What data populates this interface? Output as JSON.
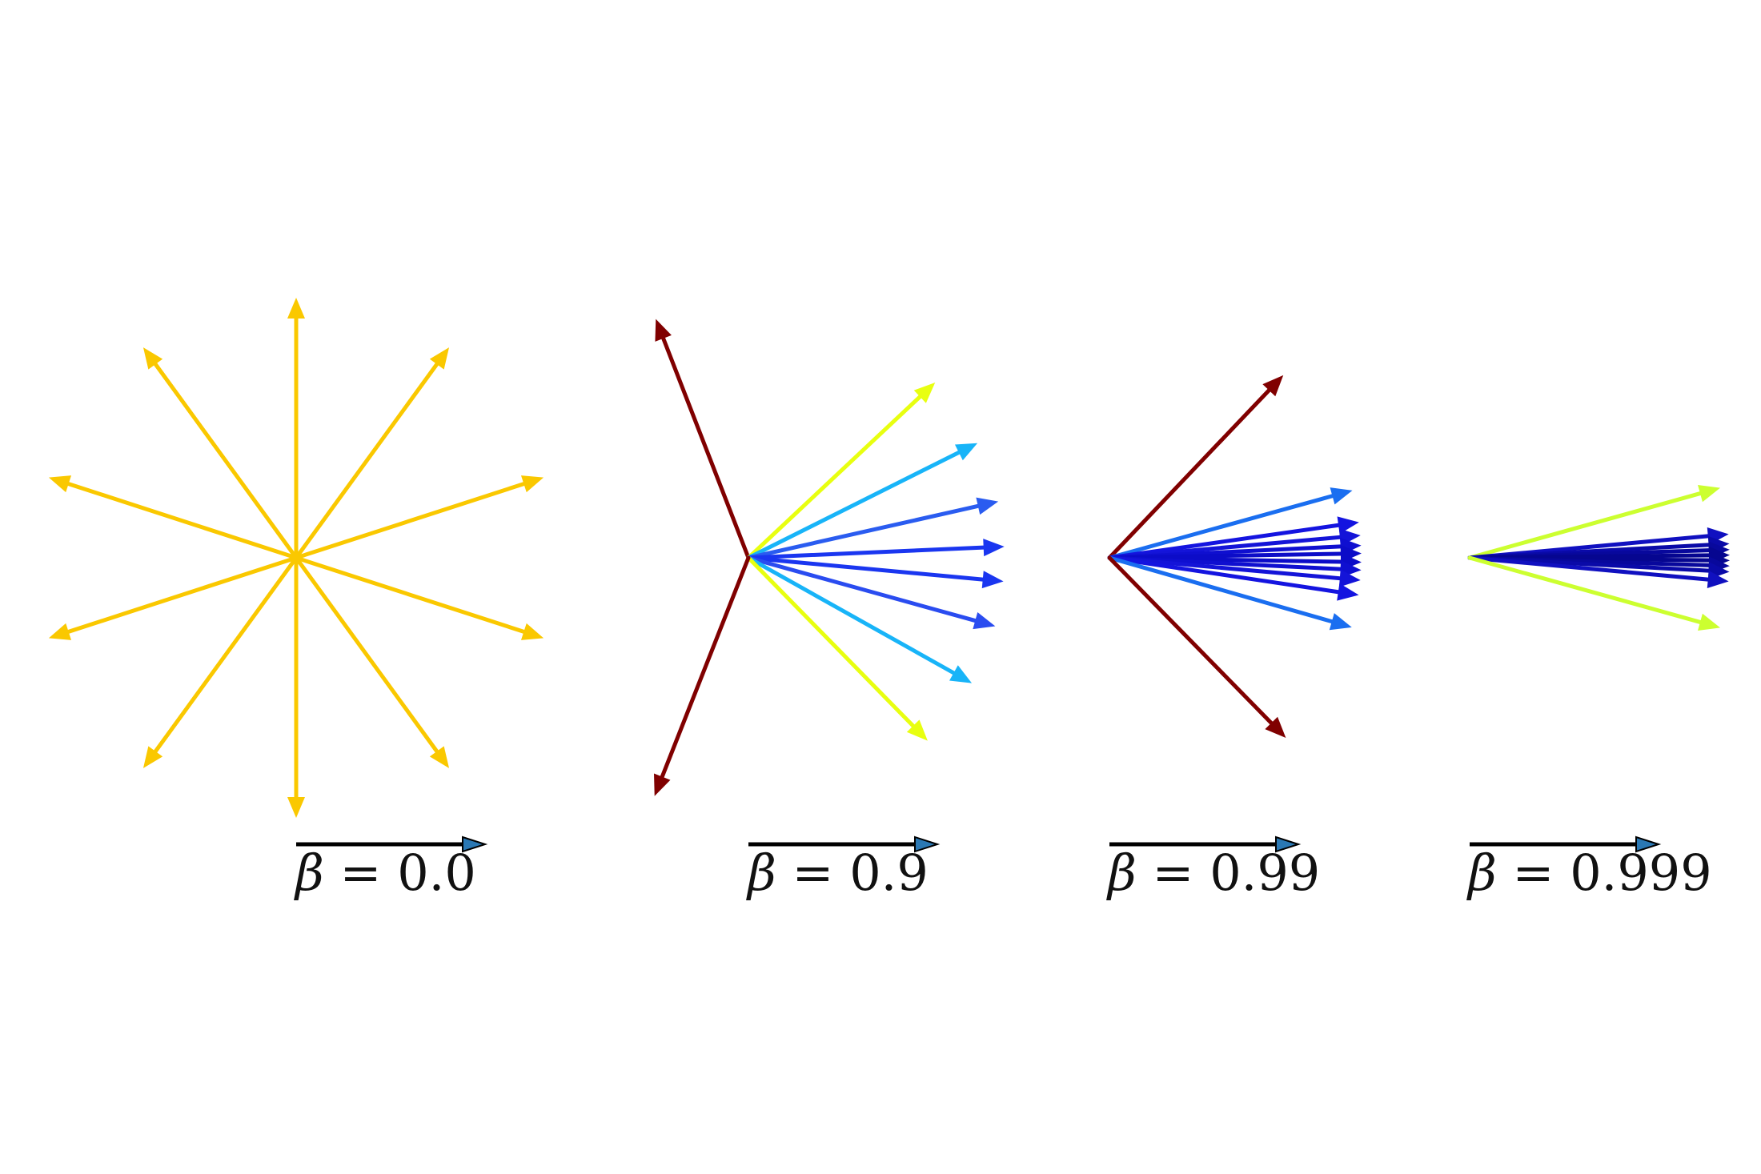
{
  "figure": {
    "panels": [
      {
        "label_symbol": "β",
        "label_text": " = 0.0",
        "beta": 0.0,
        "directions_deg": [
          90,
          54,
          18,
          -18,
          -54,
          -90,
          -126,
          -162,
          162,
          126
        ],
        "colors": [
          "#fac800",
          "#fac800",
          "#fac800",
          "#fac800",
          "#fac800",
          "#fac800",
          "#fac800",
          "#fac800",
          "#fac800",
          "#fac800"
        ]
      },
      {
        "label_symbol": "β",
        "label_text": " = 0.9",
        "beta": 0.9,
        "directions_deg": [
          111.2,
          43.2,
          26.6,
          12.7,
          2.5,
          -5.3,
          -15.5,
          -29.3,
          -45.6,
          -111.5
        ],
        "colors": [
          "#800000",
          "#e8ff10",
          "#18b4f8",
          "#2a5cf0",
          "#1a36f0",
          "#1a36f0",
          "#2a4cf0",
          "#18b4f8",
          "#e8ff10",
          "#800000"
        ]
      },
      {
        "label_symbol": "β",
        "label_text": " = 0.99",
        "beta": 0.99,
        "directions_deg": [
          46.4,
          15.5,
          8.1,
          5.1,
          2.8,
          1.0,
          -1.0,
          -2.8,
          -5.1,
          -8.5,
          -16.0,
          -45.6
        ],
        "colors": [
          "#800000",
          "#1a6ef0",
          "#1414e0",
          "#1414d8",
          "#0f0fd0",
          "#0c0cc8",
          "#0c0cc8",
          "#0f0fd0",
          "#1414d8",
          "#1414e0",
          "#1a6ef0",
          "#800000"
        ]
      },
      {
        "label_symbol": "β",
        "label_text": " = 0.999",
        "beta": 0.999,
        "directions_deg": [
          15.6,
          5.2,
          3.1,
          1.8,
          0.6,
          -0.6,
          -1.8,
          -3.1,
          -5.2,
          -15.6
        ],
        "colors": [
          "#ccff30",
          "#1010c0",
          "#0a0aa8",
          "#08089c",
          "#060690",
          "#060690",
          "#08089c",
          "#0a0aa8",
          "#1010c0",
          "#ccff30"
        ]
      }
    ],
    "velocity_arrow": {
      "shaft_color": "#000000",
      "head_color": "#2a78b4"
    }
  }
}
